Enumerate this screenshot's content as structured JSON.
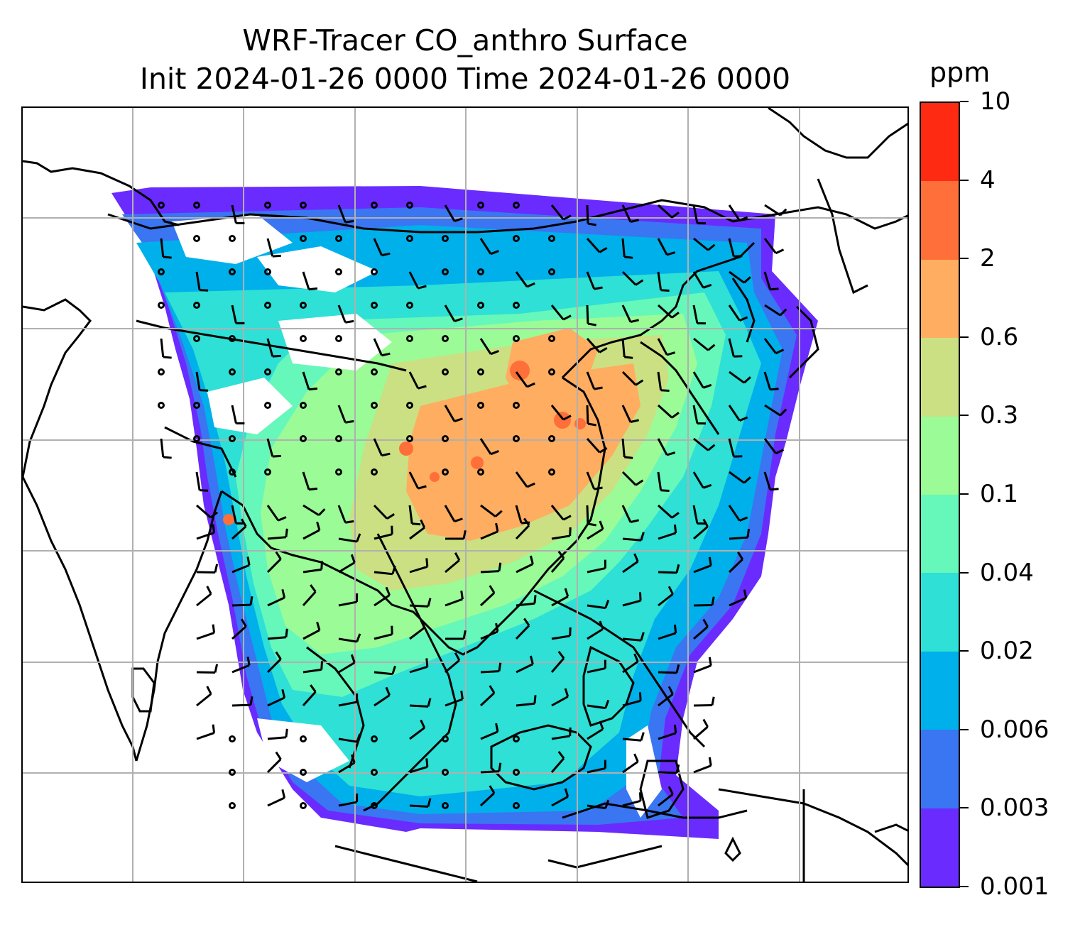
{
  "title": {
    "line1": "WRF-Tracer CO_anthro Surface",
    "line2": "Init 2024-01-26 0000 Time 2024-01-26 0000"
  },
  "colorbar": {
    "units": "ppm",
    "levels": [
      "0.001",
      "0.003",
      "0.006",
      "0.02",
      "0.04",
      "0.1",
      "0.3",
      "0.6",
      "2",
      "4",
      "10"
    ],
    "colors": [
      "#6a2bff",
      "#3a75f2",
      "#00b0ea",
      "#2ee0d5",
      "#66f7ba",
      "#9bfb97",
      "#cbe083",
      "#ffad60",
      "#ff6f3a",
      "#ff2a12"
    ]
  },
  "map": {
    "field": "CO_anthro",
    "level": "Surface",
    "grid": "on",
    "wind_barbs": "on"
  }
}
